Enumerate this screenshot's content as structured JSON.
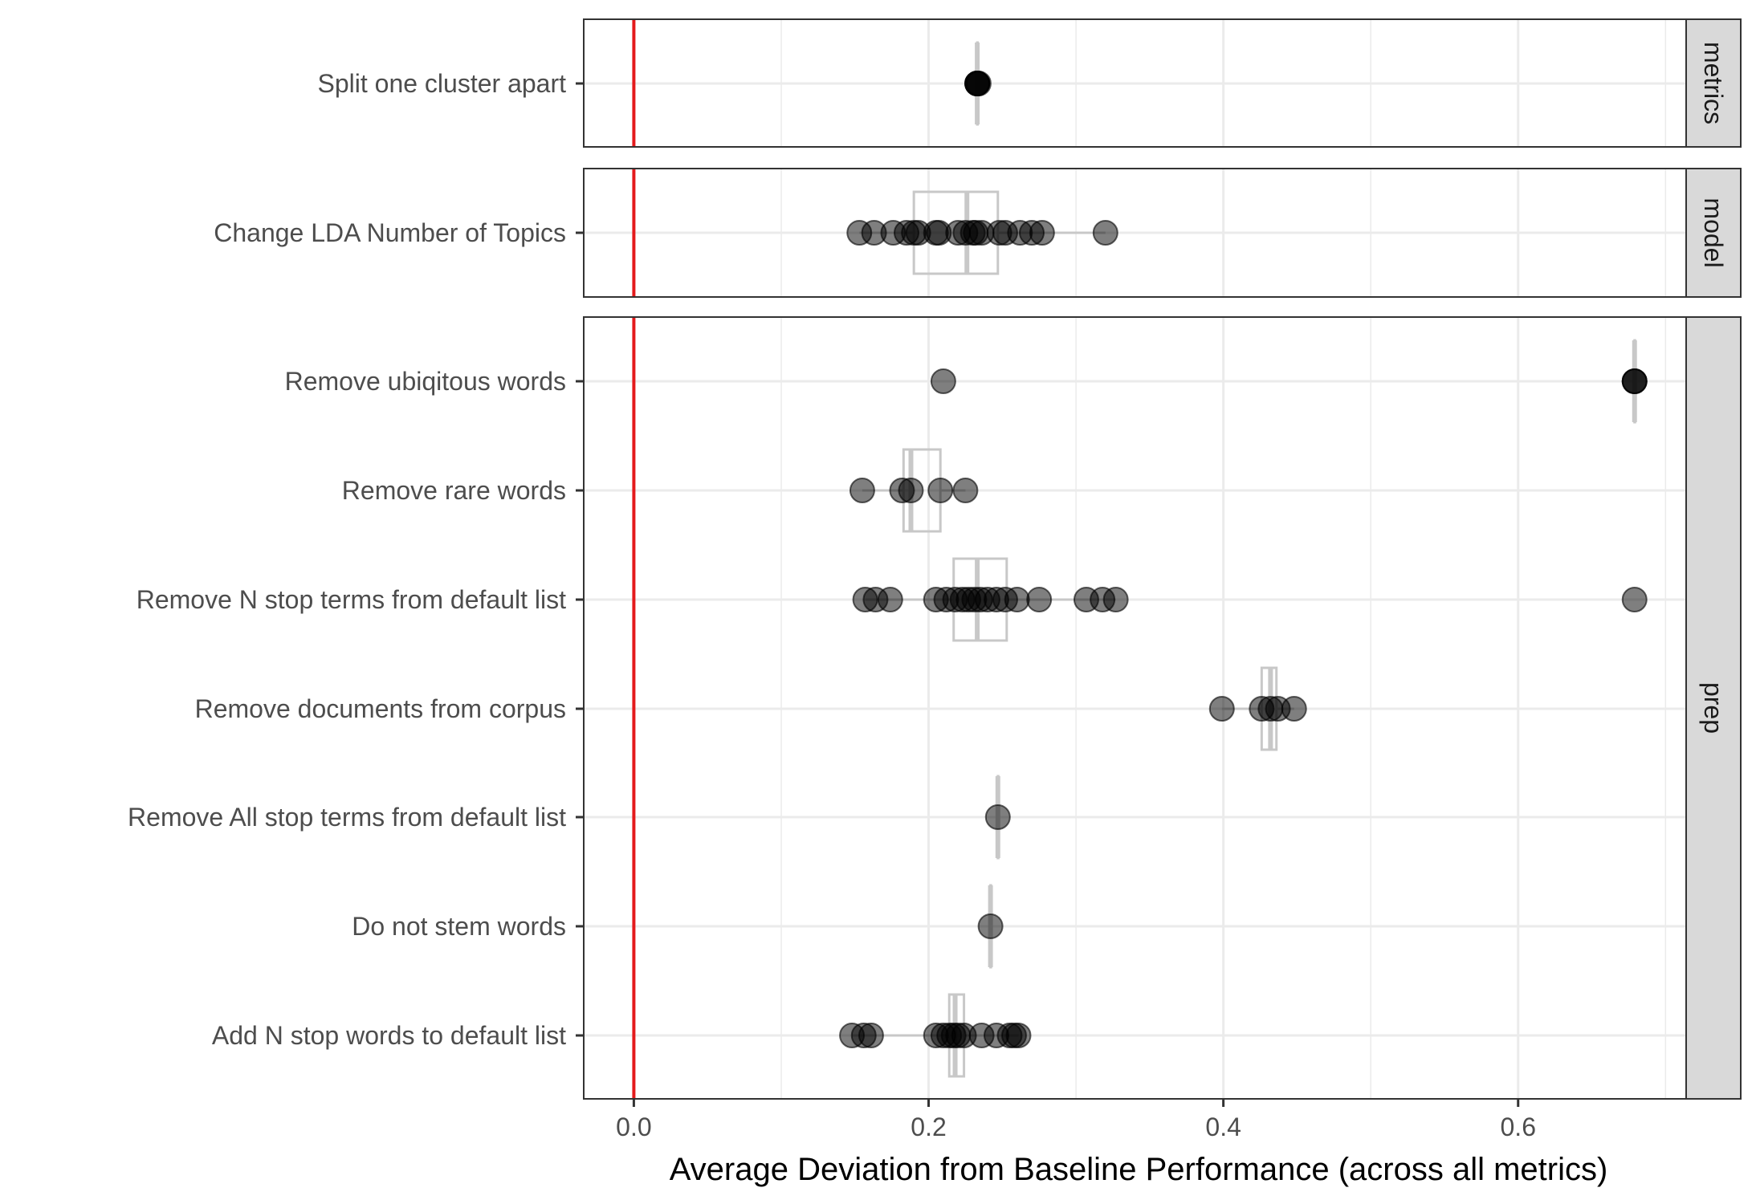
{
  "chart_data": {
    "type": "scatter",
    "xlabel": "Average Deviation from Baseline Performance (across all metrics)",
    "xlim": [
      -0.034,
      0.714
    ],
    "x_ticks": [
      0.0,
      0.2,
      0.4,
      0.6
    ],
    "x_tick_labels": [
      "0.0",
      "0.2",
      "0.4",
      "0.6"
    ],
    "reference_line": {
      "x": 0.0,
      "color": "#e41a1c"
    },
    "grid": true,
    "legend": "none",
    "colors": {
      "point": "#000000",
      "box": "#c8c8c8",
      "grid_major": "#ebebeb",
      "strip_fill": "#d9d9d9",
      "reference": "#e41a1c"
    },
    "facets": [
      {
        "name": "metrics",
        "rows": [
          {
            "label": "Split one cluster apart",
            "values": [
              0.233,
              0.233,
              0.233,
              0.233,
              0.234
            ],
            "box": {
              "min": 0.233,
              "q1": 0.233,
              "median": 0.233,
              "q3": 0.233,
              "max": 0.233
            }
          }
        ]
      },
      {
        "name": "model",
        "rows": [
          {
            "label": "Change LDA Number of Topics",
            "values": [
              0.153,
              0.163,
              0.176,
              0.185,
              0.19,
              0.193,
              0.205,
              0.207,
              0.22,
              0.225,
              0.23,
              0.232,
              0.236,
              0.248,
              0.252,
              0.262,
              0.27,
              0.277,
              0.32
            ],
            "box": {
              "min": 0.153,
              "q1": 0.19,
              "median": 0.226,
              "q3": 0.247,
              "max": 0.32
            }
          }
        ]
      },
      {
        "name": "prep",
        "rows": [
          {
            "label": "Remove ubiqitous words",
            "values": [
              0.21,
              0.679,
              0.679,
              0.679
            ],
            "box": {
              "min": 0.679,
              "q1": 0.679,
              "median": 0.679,
              "q3": 0.679,
              "max": 0.679
            }
          },
          {
            "label": "Remove rare words",
            "values": [
              0.155,
              0.182,
              0.188,
              0.208,
              0.225
            ],
            "box": {
              "min": 0.155,
              "q1": 0.183,
              "median": 0.188,
              "q3": 0.208,
              "max": 0.225
            }
          },
          {
            "label": "Remove N stop terms from default list",
            "values": [
              0.157,
              0.164,
              0.174,
              0.205,
              0.212,
              0.218,
              0.223,
              0.227,
              0.231,
              0.235,
              0.24,
              0.246,
              0.252,
              0.26,
              0.275,
              0.307,
              0.318,
              0.327,
              0.679
            ],
            "box": {
              "min": 0.157,
              "q1": 0.217,
              "median": 0.233,
              "q3": 0.253,
              "max": 0.327
            }
          },
          {
            "label": "Remove documents from corpus",
            "values": [
              0.399,
              0.426,
              0.432,
              0.437,
              0.448
            ],
            "box": {
              "min": 0.399,
              "q1": 0.426,
              "median": 0.432,
              "q3": 0.436,
              "max": 0.448
            }
          },
          {
            "label": "Remove All stop terms from default list",
            "values": [
              0.247
            ],
            "box": {
              "min": 0.247,
              "q1": 0.247,
              "median": 0.247,
              "q3": 0.247,
              "max": 0.247
            }
          },
          {
            "label": "Do not stem words",
            "values": [
              0.242
            ],
            "box": {
              "min": 0.242,
              "q1": 0.242,
              "median": 0.242,
              "q3": 0.242,
              "max": 0.242
            }
          },
          {
            "label": "Add N stop words to default list",
            "values": [
              0.148,
              0.156,
              0.161,
              0.205,
              0.21,
              0.214,
              0.217,
              0.22,
              0.224,
              0.236,
              0.246,
              0.255,
              0.258,
              0.261
            ],
            "box": {
              "min": 0.148,
              "q1": 0.214,
              "median": 0.218,
              "q3": 0.224,
              "max": 0.261
            }
          }
        ]
      }
    ]
  }
}
